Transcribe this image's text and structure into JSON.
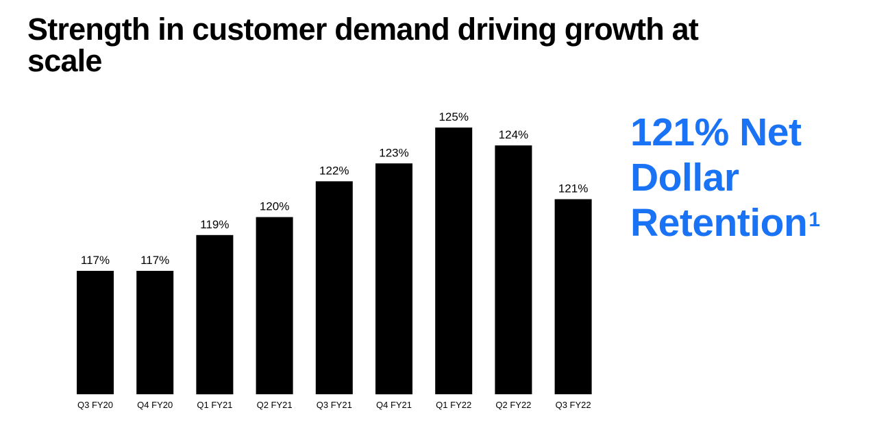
{
  "header": {
    "title": "Strength in customer demand driving growth at scale"
  },
  "callout": {
    "line1": "121% Net",
    "line2": "Dollar",
    "line3": "Retention",
    "footnote": "1",
    "color": "#1a73f5"
  },
  "chart_data": {
    "type": "bar",
    "categories": [
      "Q3 FY20",
      "Q4 FY20",
      "Q1 FY21",
      "Q2 FY21",
      "Q3 FY21",
      "Q4 FY21",
      "Q1 FY22",
      "Q2 FY22",
      "Q3 FY22"
    ],
    "values": [
      117,
      117,
      119,
      120,
      122,
      123,
      125,
      124,
      121
    ],
    "value_labels": [
      "117%",
      "117%",
      "119%",
      "120%",
      "122%",
      "123%",
      "125%",
      "124%",
      "121%"
    ],
    "bar_color": "#000000",
    "title": "",
    "xlabel": "",
    "ylabel": "",
    "grid": false
  }
}
